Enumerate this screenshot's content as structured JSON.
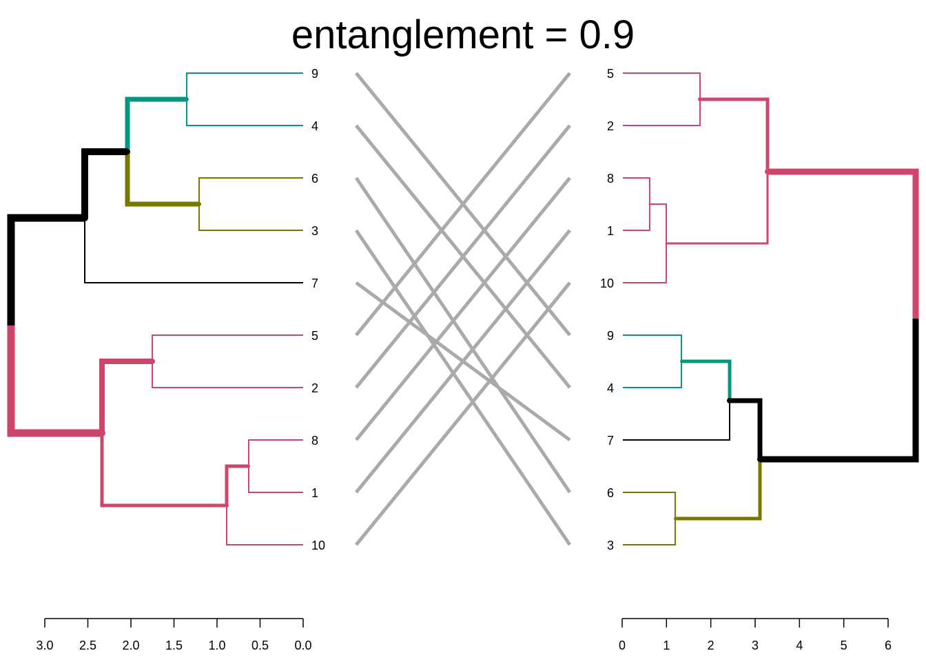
{
  "title": "entanglement = 0.9",
  "colors": {
    "teal": "#009682",
    "olive": "#787800",
    "pink": "#CC476B",
    "black": "#000000",
    "connector": "#AAAAAA"
  },
  "left_tree": {
    "leaves": [
      "9",
      "4",
      "6",
      "3",
      "7",
      "5",
      "2",
      "8",
      "1",
      "10"
    ],
    "axis_ticks": [
      "3.0",
      "2.5",
      "2.0",
      "1.5",
      "1.0",
      "0.5",
      "0.0"
    ],
    "axis_range": [
      3.0,
      0.0
    ]
  },
  "right_tree": {
    "leaves": [
      "5",
      "2",
      "8",
      "1",
      "10",
      "9",
      "4",
      "7",
      "6",
      "3"
    ],
    "axis_ticks": [
      "0",
      "1",
      "2",
      "3",
      "4",
      "5",
      "6"
    ],
    "axis_range": [
      0,
      6
    ]
  },
  "connections": [
    {
      "label": "9",
      "left_index": 0,
      "right_index": 5
    },
    {
      "label": "4",
      "left_index": 1,
      "right_index": 6
    },
    {
      "label": "6",
      "left_index": 2,
      "right_index": 8
    },
    {
      "label": "3",
      "left_index": 3,
      "right_index": 9
    },
    {
      "label": "7",
      "left_index": 4,
      "right_index": 7
    },
    {
      "label": "5",
      "left_index": 5,
      "right_index": 0
    },
    {
      "label": "2",
      "left_index": 6,
      "right_index": 1
    },
    {
      "label": "8",
      "left_index": 7,
      "right_index": 2
    },
    {
      "label": "1",
      "left_index": 8,
      "right_index": 3
    },
    {
      "label": "10",
      "left_index": 9,
      "right_index": 4
    }
  ]
}
